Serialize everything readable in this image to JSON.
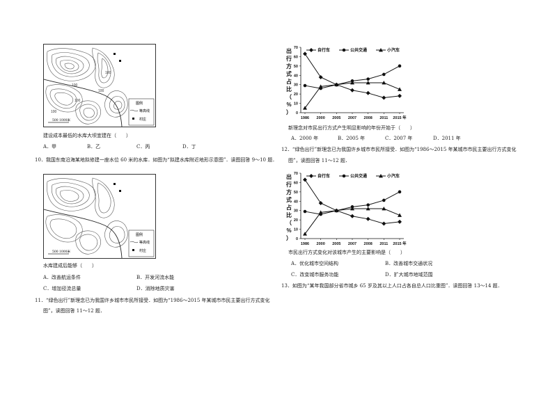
{
  "left": {
    "q_reservoir_low": "建设成本最低的水库大坝宜建在（　　）",
    "q_reservoir_low_options": [
      "A．甲",
      "B．乙",
      "C．丙",
      "D．丁"
    ],
    "q10_intro": "10．我国东南沿海某地拟修建一座水位 60 米的水库．如图为“拟建水库附近地形示意图”．读图回答 9～10 题．",
    "q10_stem": "水库建成后能够（　　）",
    "q10_options": [
      "A．改善航运条件",
      "B．开发河流水能",
      "C．增加径流总量",
      "D．消除地质灾害"
    ],
    "q11_intro_l1": "11．“绿色出行”新理念已为我国许乡城市市民所接受．如图为“1986～2015 年某城市市民主要出行方式变化",
    "q11_intro_l2": "图”，读图回答 11～12 题．",
    "map": {
      "legend_title": "图例",
      "legend_contour": "等高线",
      "legend_village": "村庄",
      "scale": "500 1000米",
      "contour_labels": [
        "100",
        "100",
        "100",
        "100",
        "100"
      ]
    }
  },
  "right": {
    "q_newidea": "新理念对市民出行方式产生明显影响的年份开始于（　　）",
    "q_newidea_options": [
      "A．2000 年",
      "B．2005 年",
      "C．2007 年",
      "D．2011 年"
    ],
    "q12_intro_l1": "12．“绿色出行”新理念已为我国许乡城市市民所接受．如图为“1986～2015 年某城市市民主要出行方式变化",
    "q12_intro_l2": "图”，读图回答 11～12 题．",
    "q12_stem": "市民出行方式变化对该城市产生的主要影响是（　　）",
    "q12_options": [
      "A．优化城市空间结构",
      "B．改善城市交通状况",
      "C．改变城市服务功能",
      "D．扩大城市地域范围"
    ],
    "q13_intro": "13．如图为“某年我国部分省市城乡 65 岁及其以上人口占各自总人口比重图”．读图回答 13～14 题．"
  },
  "chart_data": [
    {
      "type": "line",
      "ylabel": "出行方式占比（%）",
      "x": [
        "1986",
        "2000",
        "2005",
        "2007",
        "2008",
        "2011",
        "2015 年"
      ],
      "ylim": [
        0,
        70
      ],
      "yticks": [
        0,
        10,
        20,
        30,
        40,
        50,
        60,
        70
      ],
      "legend_position": "top",
      "series": [
        {
          "name": "自行车",
          "marker": "diamond",
          "values": [
            63,
            38,
            30,
            24,
            21,
            16,
            18
          ]
        },
        {
          "name": "公共交通",
          "marker": "circle",
          "values": [
            29,
            26,
            30,
            34,
            36,
            41,
            50
          ]
        },
        {
          "name": "小汽车",
          "marker": "triangle",
          "values": [
            5,
            28,
            30,
            32,
            32,
            32,
            25
          ]
        }
      ]
    },
    {
      "type": "line",
      "ylabel": "出行方式占比（%）",
      "x": [
        "1986",
        "2000",
        "2005",
        "2007",
        "2008",
        "2011",
        "2015 年"
      ],
      "ylim": [
        0,
        70
      ],
      "yticks": [
        0,
        10,
        20,
        30,
        40,
        50,
        60,
        70
      ],
      "legend_position": "top",
      "series": [
        {
          "name": "自行车",
          "marker": "diamond",
          "values": [
            63,
            38,
            30,
            24,
            21,
            16,
            18
          ]
        },
        {
          "name": "公共交通",
          "marker": "circle",
          "values": [
            29,
            26,
            30,
            34,
            36,
            41,
            50
          ]
        },
        {
          "name": "小汽车",
          "marker": "triangle",
          "values": [
            5,
            28,
            30,
            32,
            32,
            32,
            25
          ]
        }
      ]
    }
  ]
}
